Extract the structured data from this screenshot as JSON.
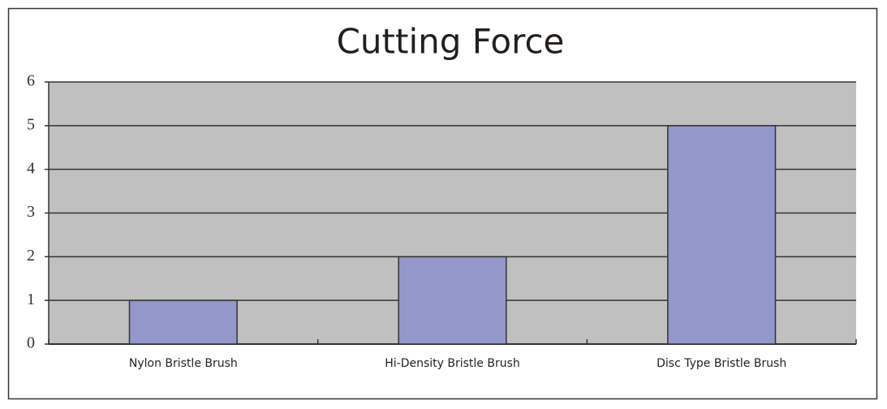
{
  "chart_data": {
    "type": "bar",
    "title": "Cutting Force",
    "categories": [
      "Nylon Bristle Brush",
      "Hi-Density Bristle Brush",
      "Disc Type Bristle Brush"
    ],
    "values": [
      1,
      2,
      5
    ],
    "color": "#9397c9",
    "ylim": [
      0,
      6
    ],
    "yticks": [
      0,
      1,
      2,
      3,
      4,
      5,
      6
    ],
    "grid": true
  }
}
